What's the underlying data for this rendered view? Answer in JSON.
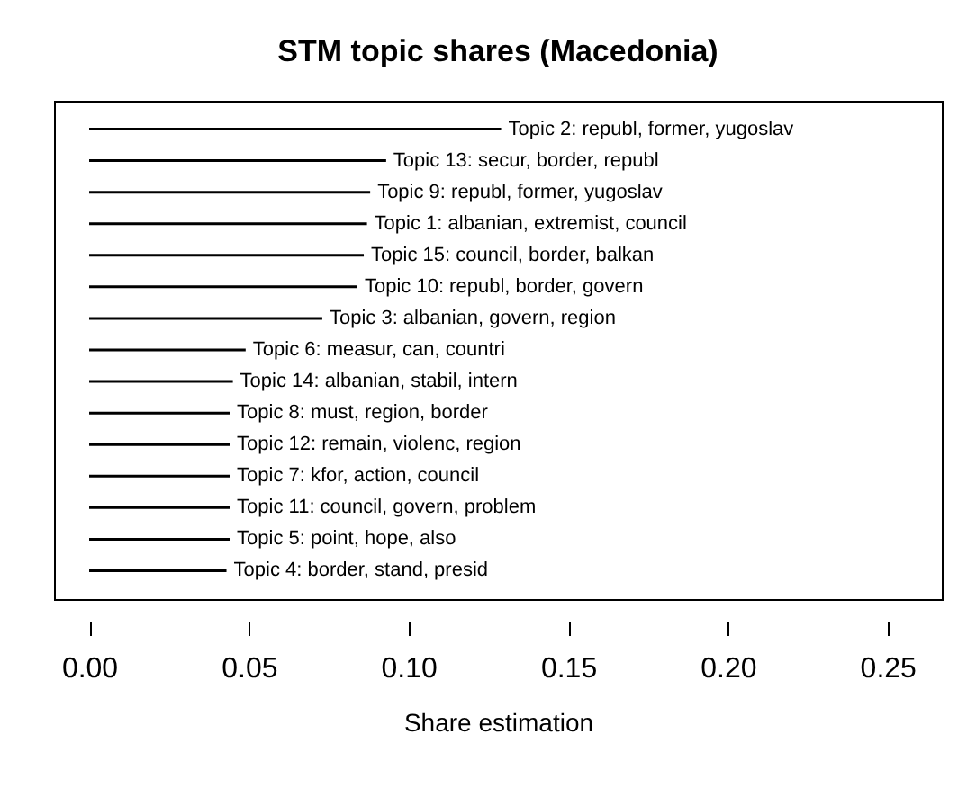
{
  "chart_data": {
    "type": "bar",
    "orientation": "horizontal",
    "title": "STM topic shares (Macedonia)",
    "xlabel": "Share estimation",
    "categories": [
      "Topic 2: republ, former, yugoslav",
      "Topic 13: secur, border, republ",
      "Topic 9: republ, former, yugoslav",
      "Topic 1: albanian, extremist, council",
      "Topic 15: council, border, balkan",
      "Topic 10: republ, border, govern",
      "Topic 3: albanian, govern, region",
      "Topic 6: measur, can, countri",
      "Topic 14: albanian, stabil, intern",
      "Topic 8: must, region, border",
      "Topic 12: remain, violenc, region",
      "Topic 7: kfor, action, council",
      "Topic 11: council, govern, problem",
      "Topic 5: point, hope, also",
      "Topic 4: border, stand, presid"
    ],
    "values": [
      0.129,
      0.093,
      0.088,
      0.087,
      0.086,
      0.084,
      0.073,
      0.049,
      0.045,
      0.044,
      0.044,
      0.044,
      0.044,
      0.044,
      0.043
    ],
    "color": "#000000",
    "xlim": [
      -0.011,
      0.267
    ],
    "xticks": [
      {
        "value": 0,
        "label": "0.00"
      },
      {
        "value": 0.05,
        "label": "0.05"
      },
      {
        "value": 0.1,
        "label": "0.10"
      },
      {
        "value": 0.15,
        "label": "0.15"
      },
      {
        "value": 0.2,
        "label": "0.20"
      },
      {
        "value": 0.25,
        "label": "0.25"
      }
    ],
    "tick_labels": "x",
    "grid": false
  }
}
